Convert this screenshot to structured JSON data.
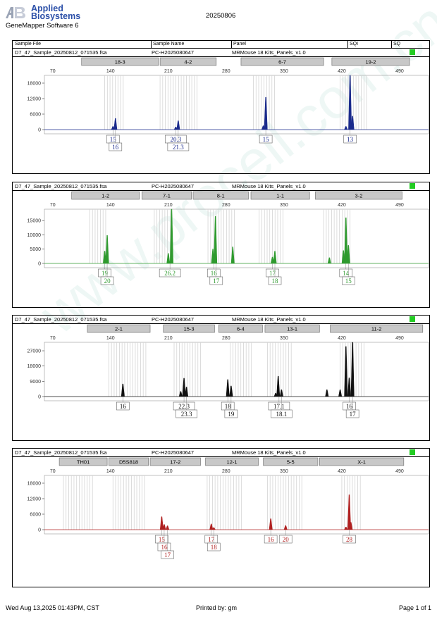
{
  "header": {
    "brand_line1": "Applied",
    "brand_line2": "Biosystems",
    "software": "GeneMapper Software 6",
    "date": "20250806"
  },
  "columns": {
    "sample_file": "Sample File",
    "sample_name": "Sample Name",
    "panel": "Panel",
    "sqi": "SQI",
    "sq": "SQ"
  },
  "panels": [
    {
      "sample_file": "D7_47_Sample_20250812_071535.fsa",
      "sample_name": "PC-H2025080647",
      "panel": "MRMouse 18 Kits_Panels_v1.0",
      "color": "#1a2a8c",
      "x_ticks": [
        70,
        140,
        210,
        280,
        350,
        420,
        490
      ],
      "y_ticks": [
        0,
        6000,
        12000,
        18000
      ],
      "y_max": 21000,
      "markers": [
        {
          "name": "18-3",
          "start": 105,
          "end": 198
        },
        {
          "name": "4-2",
          "start": 200,
          "end": 268
        },
        {
          "name": "6-7",
          "start": 298,
          "end": 398
        },
        {
          "name": "19-2",
          "start": 408,
          "end": 502
        }
      ],
      "bins": [
        [
          133,
          157
        ],
        [
          200,
          245
        ],
        [
          313,
          341
        ],
        [
          418,
          450
        ]
      ],
      "peaks": [
        [
          143,
          1200
        ],
        [
          146,
          4300
        ],
        [
          219,
          1000
        ],
        [
          222,
          3400
        ],
        [
          325,
          1500
        ],
        [
          328,
          12500
        ],
        [
          425,
          1200
        ],
        [
          430,
          21000
        ],
        [
          433,
          5200
        ]
      ],
      "alleles": [
        {
          "label": "15",
          "pos": 143,
          "row": 0
        },
        {
          "label": "16",
          "pos": 146,
          "row": 1
        },
        {
          "label": "20.3",
          "pos": 219,
          "row": 0
        },
        {
          "label": "21.3",
          "pos": 222,
          "row": 1
        },
        {
          "label": "15",
          "pos": 328,
          "row": 0
        },
        {
          "label": "13",
          "pos": 430,
          "row": 0
        }
      ]
    },
    {
      "sample_file": "D7_47_Sample_20250812_071535.fsa",
      "sample_name": "PC-H2025080647",
      "panel": "MRMouse 18 Kits_Panels_v1.0",
      "color": "#2e9a2e",
      "x_ticks": [
        70,
        140,
        210,
        280,
        350,
        420,
        490
      ],
      "y_ticks": [
        0,
        5000,
        10000,
        15000
      ],
      "y_max": 19000,
      "markers": [
        {
          "name": "1-2",
          "start": 93,
          "end": 175
        },
        {
          "name": "7-1",
          "start": 178,
          "end": 238
        },
        {
          "name": "8-1",
          "start": 240,
          "end": 307
        },
        {
          "name": "1-1",
          "start": 310,
          "end": 381
        },
        {
          "name": "3-2",
          "start": 388,
          "end": 493
        }
      ],
      "bins": [
        [
          115,
          135
        ],
        [
          193,
          215
        ],
        [
          258,
          293
        ],
        [
          320,
          350
        ],
        [
          398,
          433
        ]
      ],
      "peaks": [
        [
          133,
          4300
        ],
        [
          136,
          9800
        ],
        [
          210,
          3500
        ],
        [
          214,
          19000
        ],
        [
          264,
          5000
        ],
        [
          267,
          16500
        ],
        [
          288,
          5800
        ],
        [
          336,
          2200
        ],
        [
          339,
          4300
        ],
        [
          405,
          2000
        ],
        [
          422,
          4500
        ],
        [
          425,
          16000
        ],
        [
          428,
          6300
        ]
      ],
      "alleles": [
        {
          "label": "19",
          "pos": 133,
          "row": 0
        },
        {
          "label": "20",
          "pos": 136,
          "row": 1
        },
        {
          "label": "26.2",
          "pos": 212,
          "row": 0
        },
        {
          "label": "16",
          "pos": 265,
          "row": 0
        },
        {
          "label": "17",
          "pos": 268,
          "row": 1
        },
        {
          "label": "17",
          "pos": 336,
          "row": 0
        },
        {
          "label": "18",
          "pos": 339,
          "row": 1
        },
        {
          "label": "14",
          "pos": 425,
          "row": 0
        },
        {
          "label": "15",
          "pos": 428,
          "row": 1
        }
      ]
    },
    {
      "sample_file": "D7_47_Sample_20250812_071535.fsa",
      "sample_name": "PC-H2025080647",
      "panel": "MRMouse 18 Kits_Panels_v1.0",
      "color": "#111111",
      "x_ticks": [
        70,
        140,
        210,
        280,
        350,
        420,
        490
      ],
      "y_ticks": [
        0,
        9000,
        18000,
        27000
      ],
      "y_max": 32000,
      "markers": [
        {
          "name": "2-1",
          "start": 112,
          "end": 188
        },
        {
          "name": "15-3",
          "start": 204,
          "end": 266
        },
        {
          "name": "6-4",
          "start": 271,
          "end": 324
        },
        {
          "name": "13-1",
          "start": 327,
          "end": 393
        },
        {
          "name": "11-2",
          "start": 406,
          "end": 518
        }
      ],
      "bins": [
        [
          138,
          185
        ],
        [
          217,
          252
        ],
        [
          285,
          312
        ],
        [
          330,
          360
        ],
        [
          418,
          448
        ]
      ],
      "peaks": [
        [
          155,
          7400
        ],
        [
          225,
          3000
        ],
        [
          229,
          10800
        ],
        [
          232,
          5600
        ],
        [
          282,
          10000
        ],
        [
          286,
          6200
        ],
        [
          340,
          2000
        ],
        [
          343,
          12000
        ],
        [
          347,
          4000
        ],
        [
          402,
          4000
        ],
        [
          418,
          4000
        ],
        [
          425,
          29500
        ],
        [
          429,
          11000
        ],
        [
          433,
          32000
        ]
      ],
      "alleles": [
        {
          "label": "16",
          "pos": 155,
          "row": 0
        },
        {
          "label": "22.3",
          "pos": 229,
          "row": 0
        },
        {
          "label": "23.3",
          "pos": 232,
          "row": 1
        },
        {
          "label": "18",
          "pos": 282,
          "row": 0
        },
        {
          "label": "19",
          "pos": 286,
          "row": 1
        },
        {
          "label": "17.1",
          "pos": 344,
          "row": 0
        },
        {
          "label": "18.1",
          "pos": 347,
          "row": 1
        },
        {
          "label": "16",
          "pos": 429,
          "row": 0
        },
        {
          "label": "17",
          "pos": 433,
          "row": 1
        }
      ]
    },
    {
      "sample_file": "D7_47_Sample_20250812_071535.fsa",
      "sample_name": "PC-H2025080647",
      "panel": "MRMouse 18 Kits_Panels_v1.0",
      "color": "#b02020",
      "x_ticks": [
        70,
        140,
        210,
        280,
        350,
        420,
        490
      ],
      "y_ticks": [
        0,
        6000,
        12000,
        18000
      ],
      "y_max": 21000,
      "markers": [
        {
          "name": "TH01",
          "start": 78,
          "end": 136
        },
        {
          "name": "D5S818",
          "start": 138,
          "end": 186
        },
        {
          "name": "17-2",
          "start": 188,
          "end": 249
        },
        {
          "name": "12-1",
          "start": 255,
          "end": 319
        },
        {
          "name": "5-5",
          "start": 325,
          "end": 391
        },
        {
          "name": "X-1",
          "start": 393,
          "end": 495
        }
      ],
      "bins": [
        [
          83,
          120
        ],
        [
          143,
          184
        ],
        [
          257,
          300
        ],
        [
          330,
          372
        ],
        [
          420,
          445
        ]
      ],
      "peaks": [
        [
          202,
          5000
        ],
        [
          205,
          2000
        ],
        [
          209,
          1500
        ],
        [
          262,
          2200
        ],
        [
          265,
          800
        ],
        [
          334,
          4200
        ],
        [
          352,
          1600
        ],
        [
          425,
          1000
        ],
        [
          429,
          13500
        ],
        [
          431,
          2800
        ]
      ],
      "alleles": [
        {
          "label": "15",
          "pos": 202,
          "row": 0
        },
        {
          "label": "16",
          "pos": 205,
          "row": 1
        },
        {
          "label": "17",
          "pos": 209,
          "row": 2
        },
        {
          "label": "17",
          "pos": 262,
          "row": 0
        },
        {
          "label": "18",
          "pos": 265,
          "row": 1
        },
        {
          "label": "16",
          "pos": 334,
          "row": 0
        },
        {
          "label": "20",
          "pos": 352,
          "row": 0
        },
        {
          "label": "28",
          "pos": 429,
          "row": 0
        }
      ]
    }
  ],
  "footer": {
    "left": "Wed Aug 13,2025 01:43PM, CST",
    "center": "Printed by: gm",
    "right": "Page 1 of 1"
  },
  "watermark": "www.procell.com.cn"
}
